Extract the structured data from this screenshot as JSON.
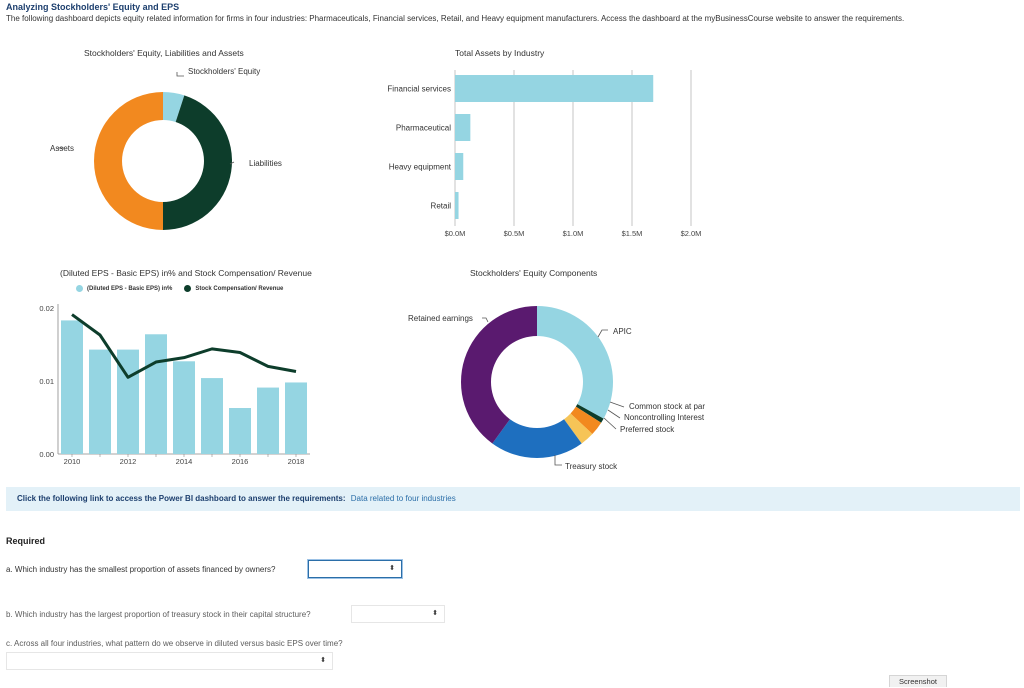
{
  "header": {
    "title": "Analyzing Stockholders' Equity and EPS",
    "intro": "The following dashboard depicts equity related information for firms in four industries: Pharmaceuticals, Financial services, Retail, and Heavy equipment manufacturers. Access the dashboard at the myBusinessCourse website to answer the requirements."
  },
  "colors": {
    "light_blue": "#95d5e2",
    "dark_green": "#0d3d2b",
    "orange": "#f2891f",
    "purple": "#5a1a6f",
    "blue": "#1e6fbf",
    "yellow": "#f6c457",
    "link_bg": "#e3f1f8"
  },
  "chart_data": [
    {
      "type": "pie",
      "title": "Stockholders' Equity, Liabilities and Assets",
      "labels": [
        "Stockholders' Equity",
        "Liabilities",
        "Assets"
      ],
      "values": [
        5,
        45,
        50
      ],
      "colors": [
        "#95d5e2",
        "#0d3d2b",
        "#f2891f"
      ]
    },
    {
      "type": "bar",
      "orientation": "horizontal",
      "title": "Total Assets by Industry",
      "categories": [
        "Financial services",
        "Pharmaceutical",
        "Heavy equipment",
        "Retail"
      ],
      "values": [
        1.68,
        0.13,
        0.07,
        0.03
      ],
      "unit": "$M",
      "xlim": [
        0,
        2.0
      ],
      "ticks": [
        0,
        0.5,
        1.0,
        1.5,
        2.0
      ],
      "tick_labels": [
        "$0.0M",
        "$0.5M",
        "$1.0M",
        "$1.5M",
        "$2.0M"
      ],
      "grid": true
    },
    {
      "type": "bar",
      "title": "(Diluted EPS - Basic EPS) in% and Stock Compensation/ Revenue",
      "x": [
        2010,
        2011,
        2012,
        2013,
        2014,
        2015,
        2016,
        2017,
        2018
      ],
      "x_tick_labels": [
        "2010",
        "2012",
        "2014",
        "2016",
        "2018"
      ],
      "ylim": [
        0,
        0.02
      ],
      "y_ticks": [
        0,
        0.01,
        0.02
      ],
      "y_tick_labels": [
        "0.00",
        "0.01",
        "0.02"
      ],
      "series": [
        {
          "name": "(Diluted EPS - Basic EPS) in%",
          "kind": "bar",
          "color": "#95d5e2",
          "values": [
            0.0183,
            0.0143,
            0.0143,
            0.0164,
            0.0127,
            0.0104,
            0.0063,
            0.0091,
            0.0098
          ]
        },
        {
          "name": "Stock Compensation/ Revenue",
          "kind": "line",
          "color": "#0d3d2b",
          "values": [
            0.0191,
            0.0163,
            0.0105,
            0.0126,
            0.0132,
            0.0144,
            0.0139,
            0.012,
            0.0113
          ]
        }
      ]
    },
    {
      "type": "pie",
      "title": "Stockholders' Equity Components",
      "labels": [
        "APIC",
        "Common stock at par",
        "Noncontrolling Interest",
        "Preferred stock",
        "Treasury stock",
        "Retained earnings"
      ],
      "values": [
        33,
        1,
        3,
        3,
        20,
        40
      ],
      "colors": [
        "#95d5e2",
        "#0d3d2b",
        "#f2891f",
        "#f6c457",
        "#1e6fbf",
        "#5a1a6f"
      ]
    }
  ],
  "link_bar": {
    "prompt": "Click the following link to access the Power BI dashboard to answer the requirements:",
    "link_text": "Data related to four industries"
  },
  "required": {
    "heading": "Required",
    "questions": [
      {
        "label": "a. Which industry has the smallest proportion of assets financed by owners?",
        "selected": ""
      },
      {
        "label": "b. Which industry has the largest proportion of treasury stock in their capital structure?",
        "selected": ""
      },
      {
        "label": "c. Across all four industries, what pattern do we observe in diluted versus basic EPS over time?",
        "selected": ""
      }
    ],
    "dropdown_glyph": "⬍"
  },
  "footer": {
    "screenshot_label": "Screenshot"
  }
}
